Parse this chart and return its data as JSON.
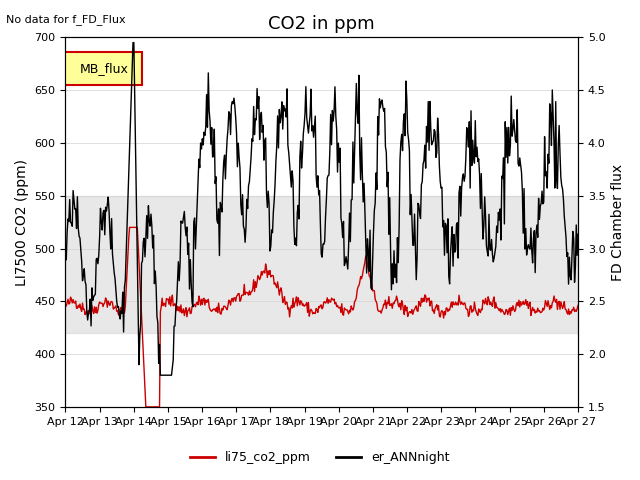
{
  "title": "CO2 in ppm",
  "no_data_text": "No data for f_FD_Flux",
  "ylabel_left": "LI7500 CO2 (ppm)",
  "ylabel_right": "FD Chamber flux",
  "ylim_left": [
    350,
    700
  ],
  "ylim_right": [
    1.5,
    5.0
  ],
  "yticks_left": [
    350,
    400,
    450,
    500,
    550,
    600,
    650,
    700
  ],
  "yticks_right": [
    1.5,
    2.0,
    2.5,
    3.0,
    3.5,
    4.0,
    4.5,
    5.0
  ],
  "xtick_labels": [
    "Apr 12",
    "Apr 13",
    "Apr 14",
    "Apr 15",
    "Apr 16",
    "Apr 17",
    "Apr 18",
    "Apr 19",
    "Apr 20",
    "Apr 21",
    "Apr 22",
    "Apr 23",
    "Apr 24",
    "Apr 25",
    "Apr 26",
    "Apr 27"
  ],
  "shading_ylim": [
    420,
    550
  ],
  "shading_color": "#d3d3d3",
  "legend_label": "MB_flux",
  "legend_bg": "#ffff99",
  "legend_edge": "#cc0000",
  "line1_color": "#cc0000",
  "line1_label": "li75_co2_ppm",
  "line2_color": "#000000",
  "line2_label": "er_ANNnight",
  "bg_color": "#ffffff",
  "title_fontsize": 13,
  "axis_fontsize": 10,
  "tick_fontsize": 8
}
